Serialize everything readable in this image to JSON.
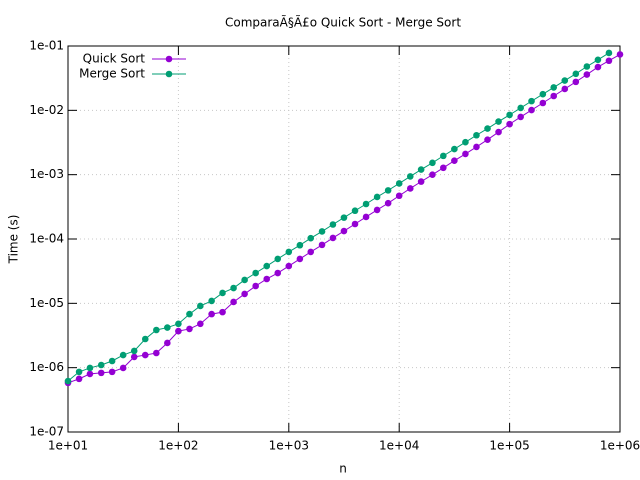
{
  "chart_data": {
    "type": "line",
    "title": "ComparaÃ§Ã£o Quick Sort - Merge Sort",
    "xlabel": "n",
    "ylabel": "Time (s)",
    "xscale": "log",
    "yscale": "log",
    "grid": true,
    "legend": "upper left",
    "x": [
      10,
      12.6,
      15.8,
      20,
      25.1,
      31.6,
      39.8,
      50.1,
      63.1,
      79.4,
      100,
      126,
      158,
      200,
      251,
      316,
      398,
      501,
      631,
      794,
      1000,
      1260,
      1580,
      2000,
      2510,
      3160,
      3980,
      5010,
      6310,
      7940,
      10000,
      12600,
      15800,
      20000,
      25100,
      31600,
      39800,
      50100,
      63100,
      79400,
      100000,
      126000,
      158000,
      200000,
      251000,
      316000,
      398000,
      501000,
      631000,
      794000,
      1000000
    ],
    "series": [
      {
        "name": "Quick Sort",
        "color": "#9400d3",
        "values": [
          5.8e-07,
          6.7e-07,
          8e-07,
          8.3e-07,
          8.6e-07,
          9.9e-07,
          1.47e-06,
          1.57e-06,
          1.69e-06,
          2.42e-06,
          3.7e-06,
          4e-06,
          4.8e-06,
          6.8e-06,
          7.3e-06,
          1.05e-05,
          1.4e-05,
          1.86e-05,
          2.39e-05,
          2.96e-05,
          3.8e-05,
          4.9e-05,
          6.3e-05,
          8.1e-05,
          0.000104,
          0.000133,
          0.000171,
          0.00022,
          0.000283,
          0.00036,
          0.00047,
          0.00061,
          0.00078,
          0.001,
          0.00128,
          0.00165,
          0.0021,
          0.0027,
          0.0035,
          0.0046,
          0.0061,
          0.0079,
          0.0101,
          0.013,
          0.0167,
          0.0215,
          0.0277,
          0.036,
          0.047,
          0.059,
          0.074
        ]
      },
      {
        "name": "Merge Sort",
        "color": "#009e73",
        "values": [
          6.2e-07,
          8.6e-07,
          9.9e-07,
          1.1e-06,
          1.27e-06,
          1.57e-06,
          1.82e-06,
          2.79e-06,
          3.85e-06,
          4.2e-06,
          4.8e-06,
          6.8e-06,
          9.1e-06,
          1.09e-05,
          1.45e-05,
          1.73e-05,
          2.31e-05,
          2.96e-05,
          3.8e-05,
          4.9e-05,
          6.3e-05,
          8e-05,
          0.000103,
          0.000131,
          0.000168,
          0.000215,
          0.000275,
          0.00035,
          0.00045,
          0.00057,
          0.00073,
          0.00094,
          0.0012,
          0.00153,
          0.00196,
          0.0025,
          0.0032,
          0.0041,
          0.0052,
          0.0067,
          0.0085,
          0.0109,
          0.0139,
          0.0178,
          0.0227,
          0.029,
          0.037,
          0.048,
          0.061,
          0.078,
          null
        ]
      }
    ],
    "xlim": [
      10,
      1000000
    ],
    "xticks": [
      {
        "value": 10,
        "label": "1e+01"
      },
      {
        "value": 100,
        "label": "1e+02"
      },
      {
        "value": 1000,
        "label": "1e+03"
      },
      {
        "value": 10000,
        "label": "1e+04"
      },
      {
        "value": 100000,
        "label": "1e+05"
      },
      {
        "value": 1000000,
        "label": "1e+06"
      }
    ],
    "ylim": [
      1e-07,
      0.1
    ],
    "yticks": [
      {
        "value": 1e-07,
        "label": "1e-07"
      },
      {
        "value": 1e-06,
        "label": "1e-06"
      },
      {
        "value": 1e-05,
        "label": "1e-05"
      },
      {
        "value": 0.0001,
        "label": "1e-04"
      },
      {
        "value": 0.001,
        "label": "1e-03"
      },
      {
        "value": 0.01,
        "label": "1e-02"
      },
      {
        "value": 0.1,
        "label": "1e-01"
      }
    ]
  }
}
